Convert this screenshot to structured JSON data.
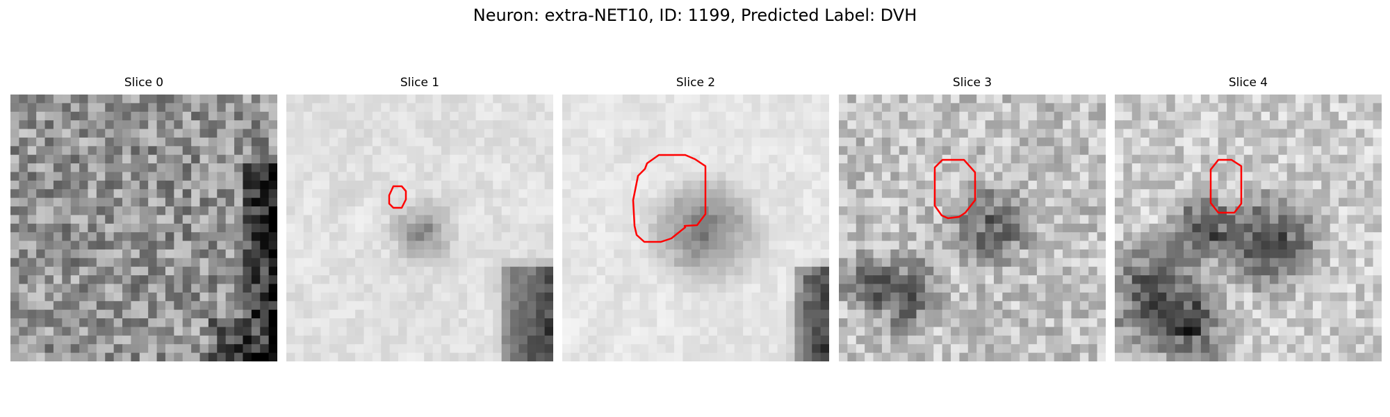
{
  "figure": {
    "title": "Neuron: extra-NET10, ID: 1199, Predicted Label: DVH"
  },
  "panels": [
    {
      "title": "Slice 0",
      "roi": false,
      "seed": 11,
      "base": 0.58,
      "noise": 0.22,
      "smooth": 0
    },
    {
      "title": "Slice 1",
      "roi": true,
      "seed": 23,
      "base": 0.88,
      "noise": 0.08,
      "smooth": 1
    },
    {
      "title": "Slice 2",
      "roi": true,
      "seed": 37,
      "base": 0.9,
      "noise": 0.07,
      "smooth": 1
    },
    {
      "title": "Slice 3",
      "roi": true,
      "seed": 51,
      "base": 0.76,
      "noise": 0.16,
      "smooth": 0
    },
    {
      "title": "Slice 4",
      "roi": true,
      "seed": 73,
      "base": 0.8,
      "noise": 0.14,
      "smooth": 0
    }
  ],
  "colors": {
    "roi_outline": "#ff0000",
    "background": "#ffffff"
  }
}
